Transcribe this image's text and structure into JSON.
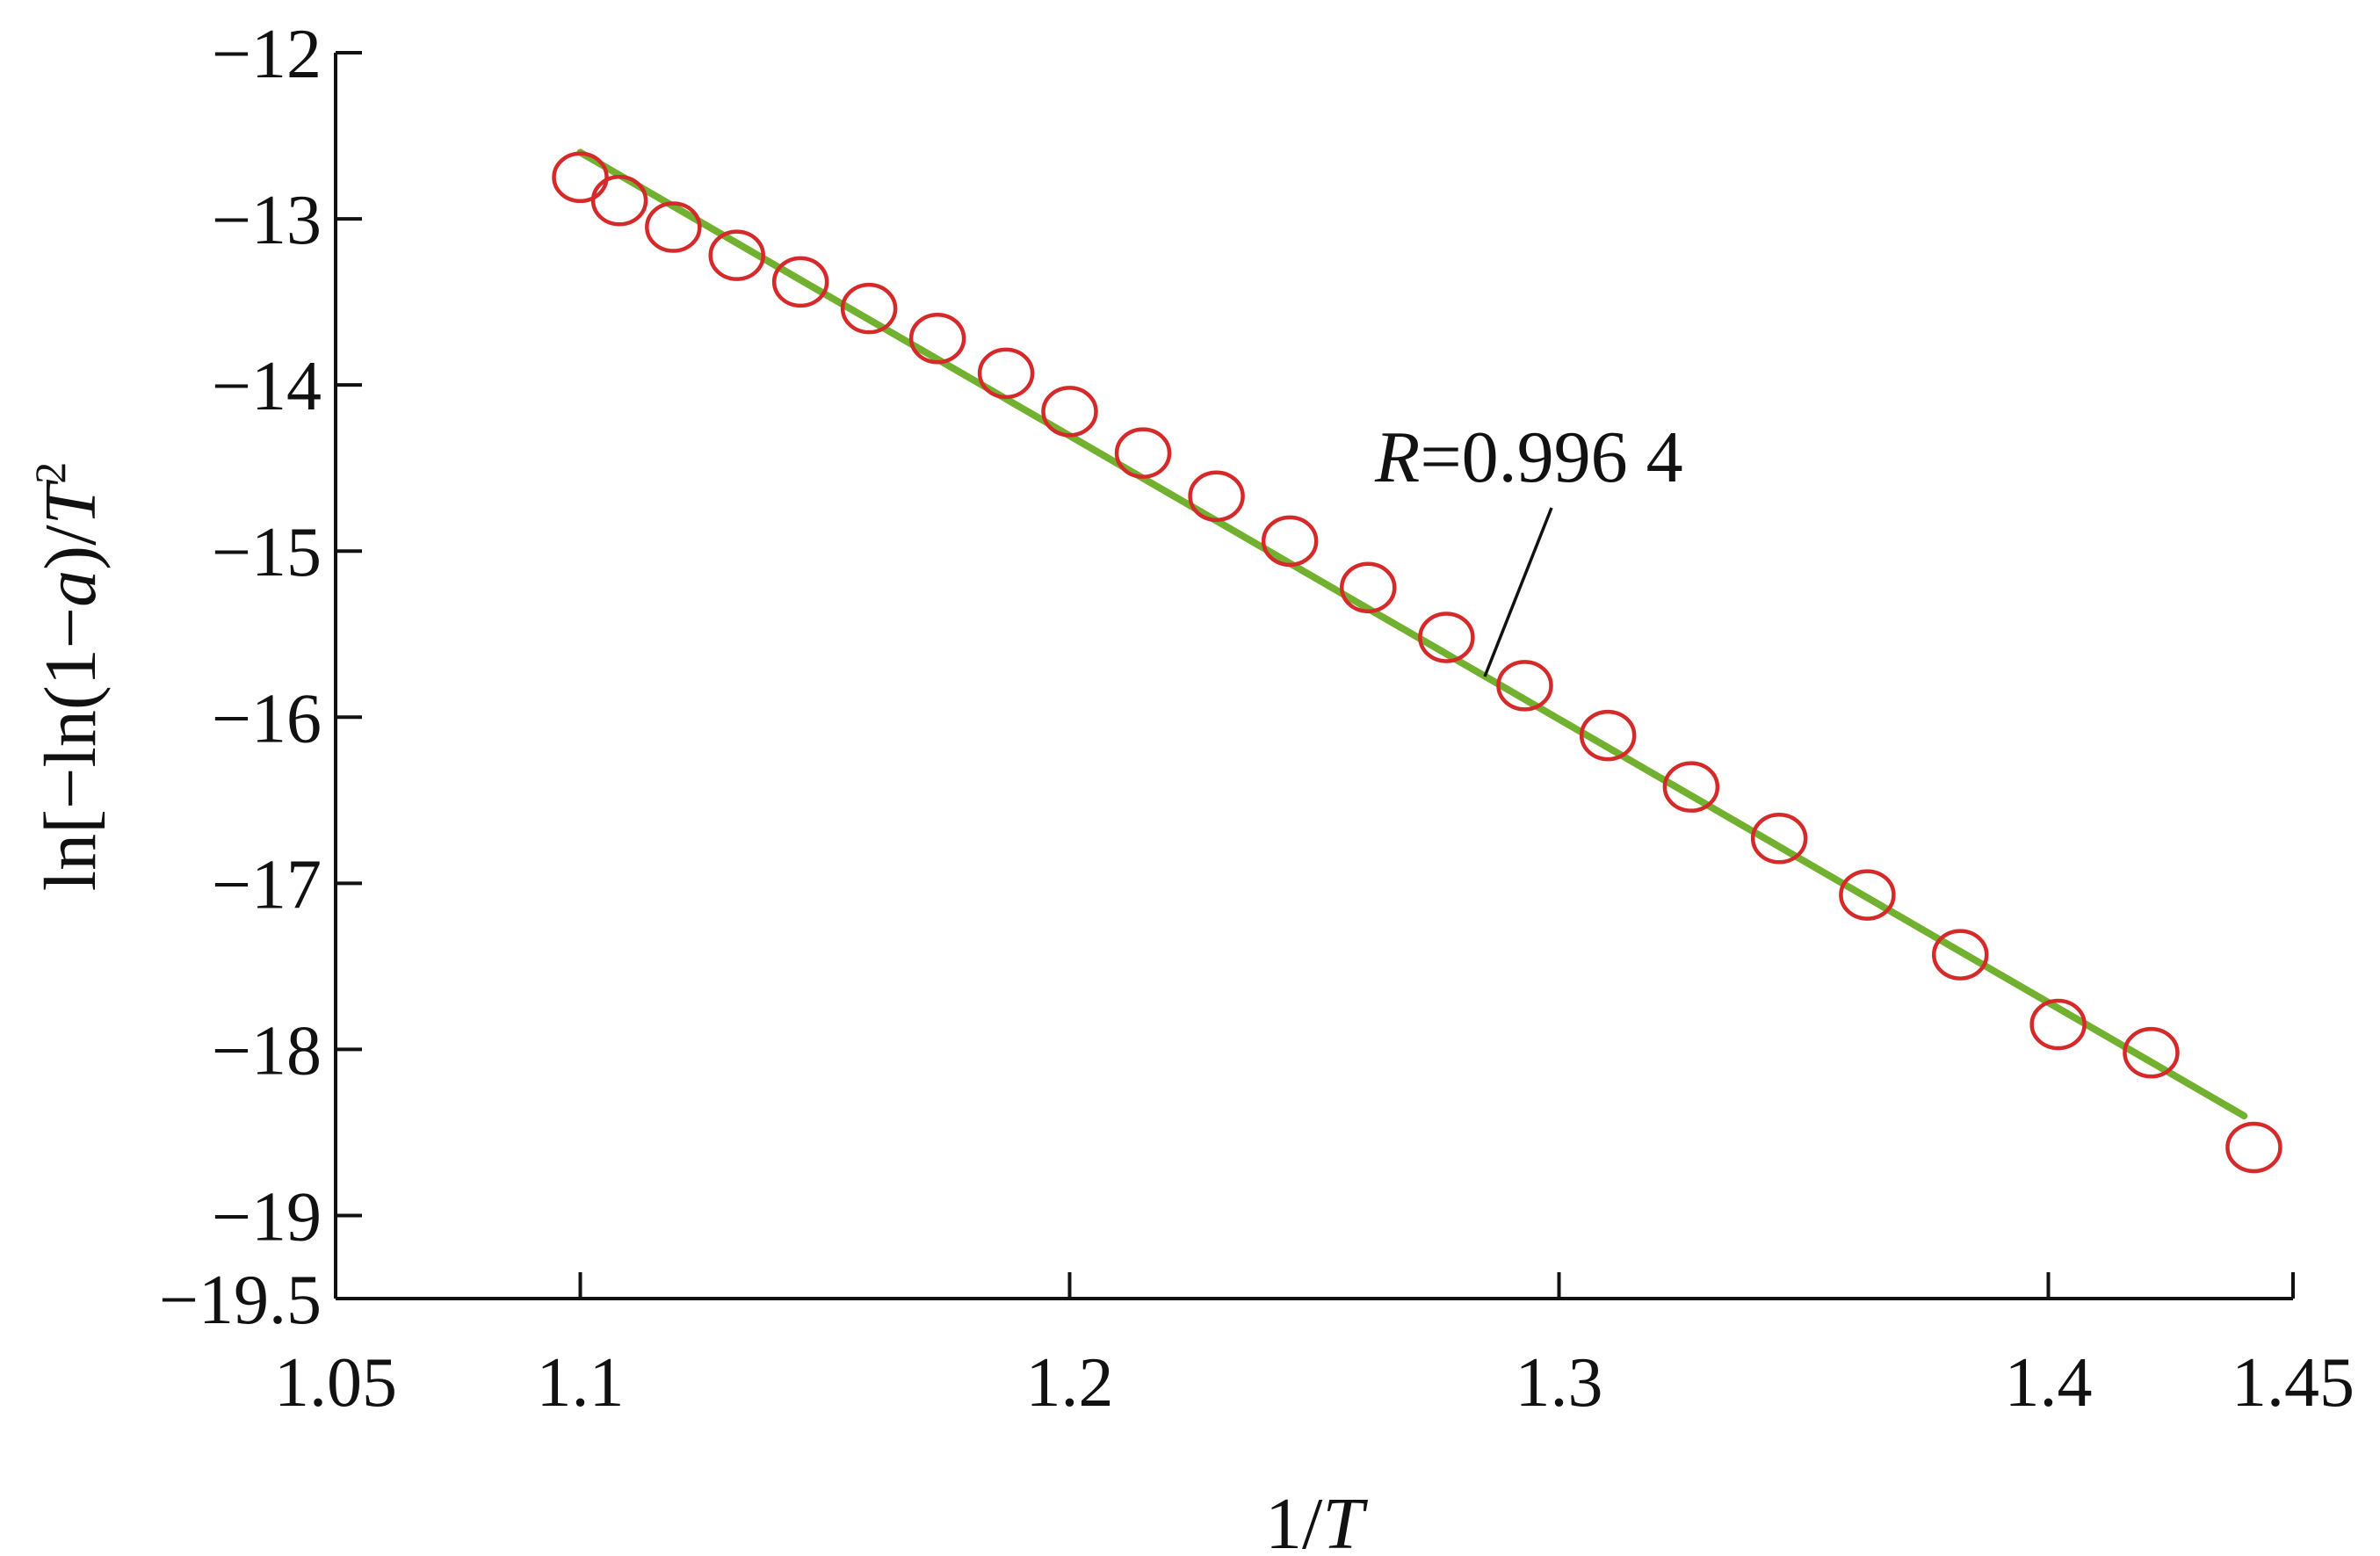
{
  "chart_data": {
    "type": "scatter",
    "xlabel": "1/T",
    "ylabel": "ln[−ln(1−a)/T²]",
    "xlim": [
      1.05,
      1.45
    ],
    "ylim": [
      -19.5,
      -12
    ],
    "x_ticks": [
      1.05,
      1.1,
      1.2,
      1.3,
      1.4,
      1.45
    ],
    "x_tick_labels": [
      "1.05",
      "1.1",
      "1.2",
      "1.3",
      "1.4",
      "1.45"
    ],
    "y_ticks": [
      -12,
      -13,
      -14,
      -15,
      -16,
      -17,
      -18,
      -19,
      -19.5
    ],
    "y_tick_labels": [
      "−12",
      "−13",
      "−14",
      "−15",
      "−16",
      "−17",
      "−18",
      "−19",
      "−19.5"
    ],
    "grid": false,
    "series": [
      {
        "kind": "markers",
        "marker": "open-circle",
        "color": "#d42a2a",
        "x": [
          1.1,
          1.108,
          1.119,
          1.132,
          1.145,
          1.159,
          1.173,
          1.187,
          1.2,
          1.215,
          1.23,
          1.245,
          1.261,
          1.277,
          1.293,
          1.31,
          1.327,
          1.345,
          1.363,
          1.382,
          1.402,
          1.421,
          1.442
        ],
        "y": [
          -12.75,
          -12.89,
          -13.05,
          -13.22,
          -13.38,
          -13.54,
          -13.72,
          -13.93,
          -14.16,
          -14.41,
          -14.67,
          -14.94,
          -15.22,
          -15.52,
          -15.81,
          -16.11,
          -16.42,
          -16.73,
          -17.07,
          -17.43,
          -17.85,
          -18.02,
          -18.59
        ]
      },
      {
        "kind": "fit-line",
        "color": "#72b02f",
        "x": [
          1.1,
          1.44
        ],
        "y": [
          -12.6,
          -18.4
        ]
      }
    ],
    "annotations": [
      {
        "text_italic": "R",
        "text_value": "=0.996 4"
      }
    ]
  }
}
